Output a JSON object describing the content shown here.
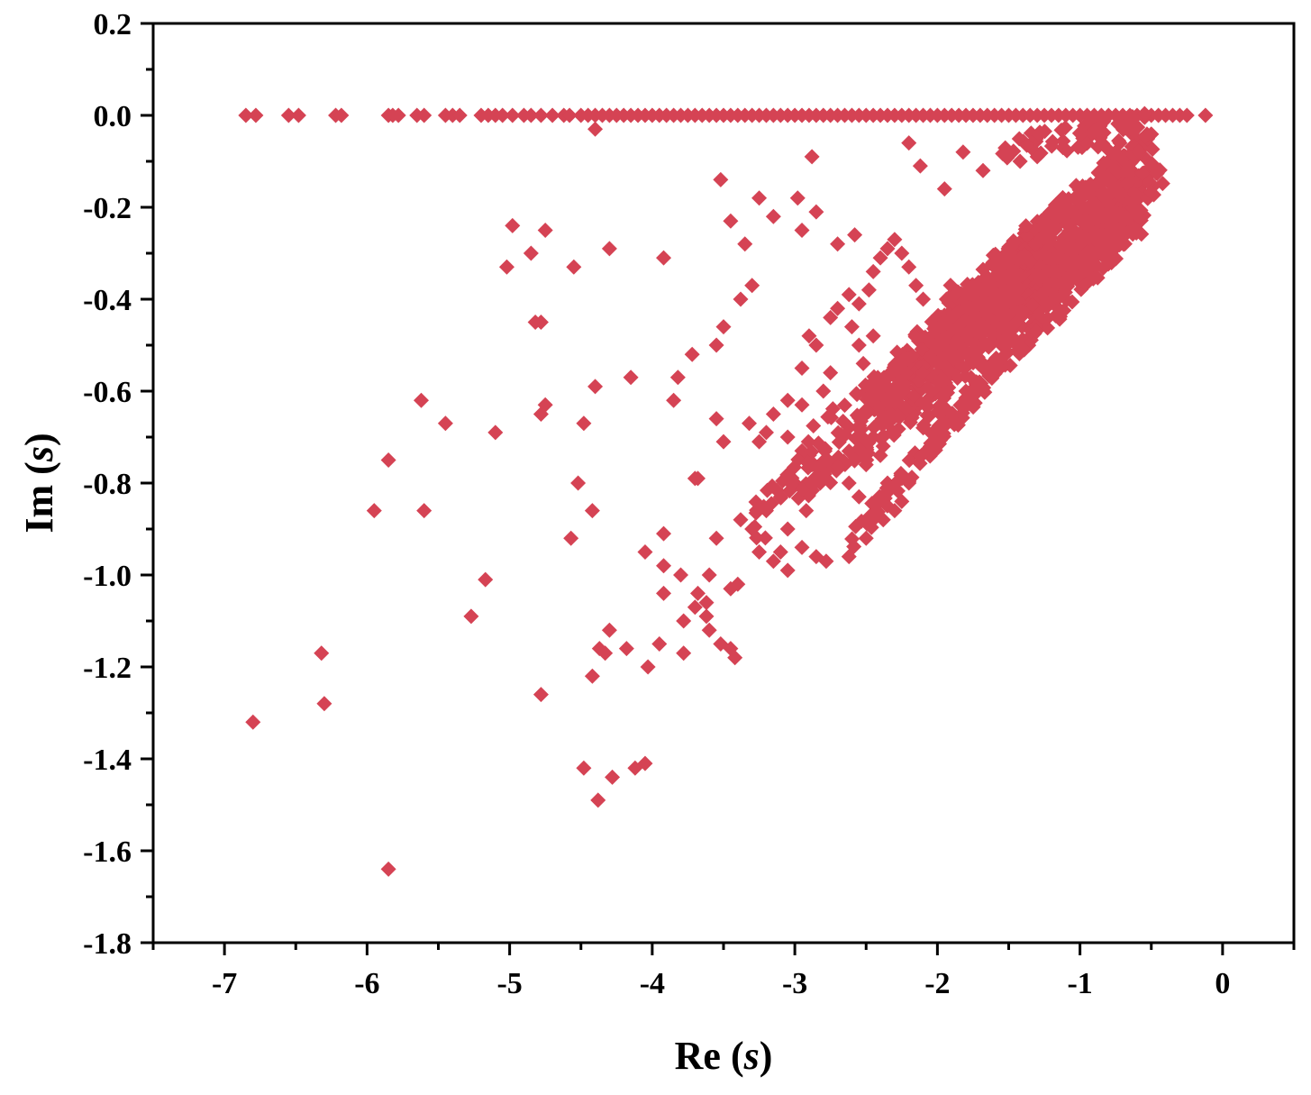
{
  "chart_data": {
    "type": "scatter",
    "title": "",
    "xlabel": {
      "main": "Re",
      "var": "s"
    },
    "ylabel": {
      "main": "Im",
      "var": "s"
    },
    "xlim": [
      -7.5,
      0.5
    ],
    "ylim": [
      -1.8,
      0.2
    ],
    "xticks": [
      "-7",
      "-6",
      "-5",
      "-4",
      "-3",
      "-2",
      "-1",
      "0"
    ],
    "yticks": [
      "0.2",
      "0.0",
      "-0.2",
      "-0.4",
      "-0.6",
      "-0.8",
      "-1.0",
      "-1.2",
      "-1.4",
      "-1.6",
      "-1.8"
    ],
    "marker": "diamond",
    "color": "#d54354",
    "grid": false,
    "legend": "none",
    "real_axis_points_re": [
      -6.85,
      -6.78,
      -6.55,
      -6.48,
      -6.22,
      -6.18,
      -5.85,
      -5.82,
      -5.78,
      -5.65,
      -5.6,
      -5.45,
      -5.4,
      -5.35,
      -5.2,
      -5.15,
      -5.1,
      -5.05,
      -4.98,
      -4.9,
      -4.85,
      -4.78,
      -4.7,
      -4.62,
      -4.58,
      -4.5,
      -4.45,
      -4.4,
      -4.35,
      -4.3,
      -4.25,
      -4.2,
      -4.15,
      -4.1,
      -4.05,
      -4.0,
      -3.95,
      -3.9,
      -3.85,
      -3.8,
      -3.75,
      -3.7,
      -3.65,
      -3.6,
      -3.55,
      -3.5,
      -3.45,
      -3.4,
      -3.35,
      -3.3,
      -3.25,
      -3.2,
      -3.15,
      -3.1,
      -3.05,
      -3.0,
      -2.95,
      -2.9,
      -2.85,
      -2.8,
      -2.75,
      -2.7,
      -2.65,
      -2.6,
      -2.55,
      -2.5,
      -2.45,
      -2.4,
      -2.35,
      -2.3,
      -2.25,
      -2.2,
      -2.15,
      -2.1,
      -2.05,
      -2.0,
      -1.95,
      -1.9,
      -1.85,
      -1.8,
      -1.75,
      -1.7,
      -1.65,
      -1.6,
      -1.55,
      -1.5,
      -1.45,
      -1.4,
      -1.35,
      -1.3,
      -1.25,
      -1.2,
      -1.15,
      -1.1,
      -1.05,
      -1.0,
      -0.95,
      -0.9,
      -0.85,
      -0.8,
      -0.75,
      -0.7,
      -0.65,
      -0.6,
      -0.55,
      -0.5,
      -0.45,
      -0.4,
      -0.35,
      -0.3,
      -0.25,
      -0.12
    ],
    "scattered_points": [
      [
        -4.4,
        -0.03
      ],
      [
        -3.52,
        -0.14
      ],
      [
        -2.88,
        -0.09
      ],
      [
        -2.2,
        -0.06
      ],
      [
        -2.12,
        -0.11
      ],
      [
        -1.95,
        -0.16
      ],
      [
        -4.98,
        -0.24
      ],
      [
        -4.75,
        -0.25
      ],
      [
        -4.3,
        -0.29
      ],
      [
        -5.02,
        -0.33
      ],
      [
        -4.85,
        -0.3
      ],
      [
        -4.55,
        -0.33
      ],
      [
        -3.92,
        -0.31
      ],
      [
        -3.45,
        -0.23
      ],
      [
        -3.25,
        -0.18
      ],
      [
        -3.15,
        -0.22
      ],
      [
        -2.98,
        -0.18
      ],
      [
        -2.95,
        -0.25
      ],
      [
        -2.85,
        -0.21
      ],
      [
        -2.7,
        -0.28
      ],
      [
        -2.58,
        -0.26
      ],
      [
        -3.35,
        -0.28
      ],
      [
        -3.3,
        -0.37
      ],
      [
        -3.38,
        -0.4
      ],
      [
        -4.82,
        -0.45
      ],
      [
        -4.78,
        -0.45
      ],
      [
        -3.5,
        -0.46
      ],
      [
        -3.55,
        -0.5
      ],
      [
        -3.72,
        -0.52
      ],
      [
        -3.82,
        -0.57
      ],
      [
        -4.15,
        -0.57
      ],
      [
        -4.4,
        -0.59
      ],
      [
        -5.62,
        -0.62
      ],
      [
        -4.75,
        -0.63
      ],
      [
        -4.78,
        -0.65
      ],
      [
        -3.85,
        -0.62
      ],
      [
        -3.55,
        -0.66
      ],
      [
        -3.32,
        -0.67
      ],
      [
        -4.48,
        -0.67
      ],
      [
        -5.45,
        -0.67
      ],
      [
        -5.1,
        -0.69
      ],
      [
        -3.5,
        -0.71
      ],
      [
        -3.25,
        -0.71
      ],
      [
        -5.85,
        -0.75
      ],
      [
        -3.68,
        -0.79
      ],
      [
        -3.7,
        -0.79
      ],
      [
        -4.52,
        -0.8
      ],
      [
        -5.95,
        -0.86
      ],
      [
        -5.6,
        -0.86
      ],
      [
        -4.42,
        -0.86
      ],
      [
        -3.92,
        -0.91
      ],
      [
        -4.57,
        -0.92
      ],
      [
        -3.55,
        -0.92
      ],
      [
        -4.05,
        -0.95
      ],
      [
        -3.92,
        -0.98
      ],
      [
        -3.8,
        -1.0
      ],
      [
        -3.6,
        -1.0
      ],
      [
        -3.4,
        -1.02
      ],
      [
        -3.45,
        -1.03
      ],
      [
        -5.17,
        -1.01
      ],
      [
        -3.68,
        -1.04
      ],
      [
        -3.62,
        -1.06
      ],
      [
        -3.92,
        -1.04
      ],
      [
        -3.7,
        -1.07
      ],
      [
        -3.62,
        -1.09
      ],
      [
        -3.6,
        -1.12
      ],
      [
        -3.78,
        -1.1
      ],
      [
        -5.27,
        -1.09
      ],
      [
        -4.3,
        -1.12
      ],
      [
        -4.37,
        -1.16
      ],
      [
        -4.33,
        -1.17
      ],
      [
        -4.18,
        -1.16
      ],
      [
        -3.95,
        -1.15
      ],
      [
        -3.78,
        -1.17
      ],
      [
        -3.52,
        -1.15
      ],
      [
        -3.45,
        -1.16
      ],
      [
        -3.42,
        -1.18
      ],
      [
        -6.32,
        -1.17
      ],
      [
        -4.03,
        -1.2
      ],
      [
        -4.42,
        -1.22
      ],
      [
        -6.3,
        -1.28
      ],
      [
        -4.78,
        -1.26
      ],
      [
        -6.8,
        -1.32
      ],
      [
        -4.48,
        -1.42
      ],
      [
        -4.28,
        -1.44
      ],
      [
        -4.12,
        -1.42
      ],
      [
        -4.05,
        -1.41
      ],
      [
        -4.38,
        -1.49
      ],
      [
        -5.85,
        -1.64
      ],
      [
        -2.95,
        -0.55
      ],
      [
        -2.9,
        -0.48
      ],
      [
        -2.85,
        -0.5
      ],
      [
        -2.75,
        -0.44
      ],
      [
        -2.7,
        -0.42
      ],
      [
        -2.62,
        -0.39
      ],
      [
        -2.55,
        -0.41
      ],
      [
        -2.48,
        -0.38
      ],
      [
        -2.45,
        -0.34
      ],
      [
        -2.4,
        -0.31
      ],
      [
        -2.35,
        -0.29
      ],
      [
        -2.3,
        -0.27
      ],
      [
        -2.25,
        -0.3
      ],
      [
        -2.2,
        -0.33
      ],
      [
        -2.15,
        -0.37
      ],
      [
        -2.1,
        -0.4
      ],
      [
        -2.75,
        -0.56
      ],
      [
        -2.8,
        -0.6
      ],
      [
        -2.95,
        -0.63
      ],
      [
        -3.05,
        -0.62
      ],
      [
        -3.15,
        -0.65
      ],
      [
        -3.2,
        -0.69
      ],
      [
        -3.05,
        -0.7
      ],
      [
        -2.95,
        -0.73
      ],
      [
        -2.88,
        -0.76
      ],
      [
        -3.0,
        -0.8
      ],
      [
        -3.1,
        -0.83
      ],
      [
        -3.2,
        -0.86
      ],
      [
        -3.3,
        -0.9
      ],
      [
        -3.38,
        -0.88
      ],
      [
        -3.25,
        -0.95
      ],
      [
        -3.15,
        -0.97
      ],
      [
        -3.05,
        -0.99
      ],
      [
        -2.95,
        -0.94
      ],
      [
        -2.85,
        -0.96
      ],
      [
        -2.78,
        -0.97
      ],
      [
        -2.62,
        -0.96
      ],
      [
        -2.5,
        -0.92
      ],
      [
        -2.45,
        -0.87
      ],
      [
        -2.38,
        -0.88
      ],
      [
        -2.3,
        -0.86
      ],
      [
        -2.25,
        -0.84
      ],
      [
        -2.2,
        -0.8
      ],
      [
        -2.4,
        -0.74
      ],
      [
        -2.45,
        -0.7
      ],
      [
        -2.5,
        -0.76
      ],
      [
        -2.62,
        -0.8
      ],
      [
        -2.55,
        -0.83
      ],
      [
        -2.35,
        -0.8
      ],
      [
        -3.05,
        -0.9
      ],
      [
        -3.1,
        -0.95
      ],
      [
        -2.92,
        -0.86
      ],
      [
        -1.82,
        -0.08
      ],
      [
        -1.68,
        -0.12
      ],
      [
        -1.42,
        -0.1
      ],
      [
        -1.3,
        -0.09
      ],
      [
        -1.12,
        -0.07
      ],
      [
        -0.98,
        -0.05
      ],
      [
        -0.72,
        -0.06
      ],
      [
        -2.45,
        -0.48
      ],
      [
        -2.55,
        -0.5
      ],
      [
        -2.52,
        -0.54
      ],
      [
        -2.6,
        -0.46
      ],
      [
        -2.05,
        -0.72
      ],
      [
        -2.1,
        -0.68
      ],
      [
        -2.15,
        -0.62
      ],
      [
        -1.95,
        -0.65
      ],
      [
        -1.8,
        -0.6
      ],
      [
        -1.68,
        -0.55
      ],
      [
        -1.55,
        -0.5
      ],
      [
        -1.35,
        -0.43
      ]
    ],
    "dense_bands": [
      {
        "start": [
          -2.95,
          -0.78
        ],
        "end": [
          -0.62,
          -0.12
        ],
        "width": 0.08,
        "count": 220
      },
      {
        "start": [
          -2.55,
          -0.68
        ],
        "end": [
          -0.55,
          -0.1
        ],
        "width": 0.09,
        "count": 320
      },
      {
        "start": [
          -2.3,
          -0.62
        ],
        "end": [
          -0.48,
          -0.08
        ],
        "width": 0.07,
        "count": 260
      },
      {
        "start": [
          -1.95,
          -0.48
        ],
        "end": [
          -0.62,
          -0.16
        ],
        "width": 0.1,
        "count": 200
      },
      {
        "start": [
          -2.6,
          -0.92
        ],
        "end": [
          -0.4,
          -0.12
        ],
        "width": 0.025,
        "count": 130
      },
      {
        "start": [
          -2.1,
          -0.7
        ],
        "end": [
          -0.55,
          -0.2
        ],
        "width": 0.05,
        "count": 150
      },
      {
        "start": [
          -3.3,
          -0.9
        ],
        "end": [
          -2.2,
          -0.58
        ],
        "width": 0.06,
        "count": 70
      },
      {
        "start": [
          -1.55,
          -0.08
        ],
        "end": [
          -0.5,
          -0.02
        ],
        "width": 0.03,
        "count": 60
      }
    ]
  }
}
